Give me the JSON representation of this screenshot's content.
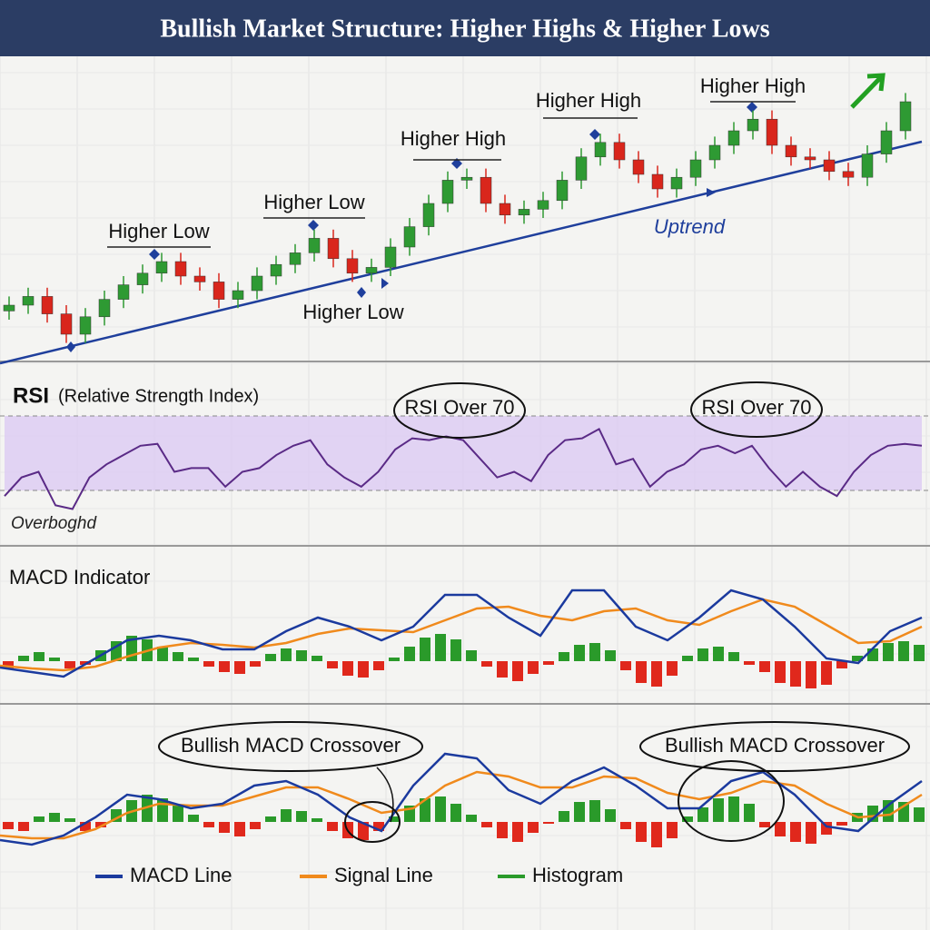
{
  "header": {
    "title": "Bullish Market Structure: Higher Highs & Higher Lows"
  },
  "chart_data": [
    {
      "type": "candlestick",
      "open": [
        18,
        20,
        23,
        17,
        10,
        16,
        22,
        27,
        31,
        35,
        30,
        28,
        22,
        25,
        30,
        34,
        38,
        43,
        36,
        31,
        33,
        40,
        47,
        55,
        63,
        64,
        55,
        51,
        53,
        56,
        63,
        71,
        76,
        70,
        65,
        60,
        64,
        70,
        75,
        80,
        84,
        75,
        71,
        70,
        66,
        64,
        72,
        80
      ],
      "high": [
        23,
        26,
        26,
        20,
        19,
        25,
        30,
        34,
        38,
        38,
        33,
        31,
        28,
        33,
        37,
        41,
        46,
        46,
        39,
        36,
        43,
        50,
        58,
        66,
        67,
        67,
        58,
        56,
        59,
        66,
        74,
        79,
        79,
        73,
        68,
        67,
        73,
        78,
        83,
        87,
        87,
        78,
        74,
        73,
        69,
        75,
        83,
        93
      ],
      "low": [
        15,
        17,
        14,
        7,
        7,
        13,
        19,
        24,
        28,
        27,
        25,
        19,
        19,
        22,
        27,
        31,
        35,
        33,
        28,
        28,
        30,
        37,
        44,
        52,
        60,
        52,
        48,
        48,
        50,
        53,
        60,
        68,
        67,
        62,
        57,
        57,
        61,
        67,
        72,
        77,
        72,
        68,
        67,
        63,
        61,
        61,
        69,
        77
      ],
      "close": [
        20,
        23,
        17,
        10,
        16,
        22,
        27,
        31,
        35,
        30,
        28,
        22,
        25,
        30,
        34,
        38,
        43,
        36,
        31,
        33,
        40,
        47,
        55,
        63,
        64,
        55,
        51,
        53,
        56,
        63,
        71,
        76,
        70,
        65,
        60,
        64,
        70,
        75,
        80,
        84,
        75,
        71,
        70,
        66,
        64,
        72,
        80,
        90
      ],
      "ylim": [
        0,
        105
      ],
      "up_color": "#2e9a33",
      "down_color": "#d9261c",
      "annotations": [
        "Higher Low",
        "Higher Low",
        "Higher High",
        "Higher High",
        "Higher High",
        "Higher Low",
        "Uptrend"
      ]
    },
    {
      "type": "line",
      "title": "RSI",
      "subtitle": "(Relative Strength Index)",
      "values": [
        27,
        37,
        40,
        22,
        20,
        37,
        44,
        49,
        54,
        55,
        40,
        42,
        42,
        32,
        40,
        42,
        49,
        54,
        57,
        44,
        37,
        32,
        40,
        52,
        58,
        57,
        59,
        57,
        47,
        37,
        40,
        35,
        49,
        57,
        58,
        63,
        44,
        47,
        32,
        40,
        44,
        52,
        54,
        50,
        54,
        42,
        32,
        40,
        32,
        27,
        40,
        49,
        54,
        55,
        54
      ],
      "color": "#5a2a86",
      "ylim": [
        10,
        80
      ],
      "band": [
        30,
        70
      ],
      "band_color": "#dccbf2",
      "annotations": [
        "RSI Over 70",
        "RSI Over 70"
      ],
      "zone_label": "Overboghd"
    },
    {
      "type": "macd",
      "title": "MACD Indicator",
      "ylim": [
        -60,
        90
      ],
      "series": [
        {
          "color": "#1b3a9e",
          "values": [
            -7,
            -12,
            -17,
            3,
            23,
            28,
            23,
            13,
            13,
            33,
            48,
            38,
            23,
            38,
            73,
            73,
            48,
            28,
            78,
            78,
            38,
            23,
            48,
            78,
            68,
            38,
            3,
            -2,
            33,
            48
          ]
        },
        {
          "color": "#f08a1c",
          "values": [
            -5,
            -8,
            -10,
            -6,
            5,
            15,
            20,
            18,
            15,
            20,
            30,
            36,
            34,
            32,
            45,
            58,
            60,
            50,
            45,
            55,
            58,
            45,
            40,
            55,
            68,
            60,
            40,
            20,
            22,
            38
          ]
        },
        {
          "color": "#2a9a2a",
          "negative_color": "#e0281c",
          "values": [
            -8,
            6,
            10,
            4,
            -8,
            -4,
            12,
            22,
            28,
            24,
            16,
            10,
            4,
            -6,
            -12,
            -14,
            -6,
            8,
            14,
            12,
            6,
            -8,
            -16,
            -18,
            -10,
            4,
            16,
            26,
            30,
            24,
            12,
            -6,
            -18,
            -22,
            -14,
            -4,
            10,
            18,
            20,
            12,
            -10,
            -24,
            -28,
            -16,
            6,
            14,
            16,
            10,
            -4,
            -12,
            -24,
            -28,
            -30,
            -26,
            -8,
            6,
            14,
            20,
            22,
            18
          ]
        }
      ]
    },
    {
      "type": "macd",
      "ylim": [
        -60,
        90
      ],
      "annotations": [
        "Bullish MACD Crossover",
        "Bullish MACD Crossover"
      ],
      "series": [
        {
          "name": "MACD Line",
          "color": "#1b3a9e",
          "values": [
            -20,
            -25,
            -15,
            5,
            30,
            25,
            15,
            20,
            40,
            45,
            30,
            5,
            -10,
            40,
            75,
            70,
            35,
            20,
            45,
            60,
            40,
            15,
            15,
            45,
            55,
            30,
            -5,
            -10,
            20,
            45
          ]
        },
        {
          "name": "Signal Line",
          "color": "#f08a1c",
          "values": [
            -15,
            -18,
            -18,
            -8,
            10,
            20,
            18,
            18,
            28,
            38,
            38,
            25,
            10,
            15,
            40,
            55,
            50,
            38,
            38,
            50,
            48,
            32,
            25,
            32,
            45,
            40,
            20,
            5,
            8,
            30
          ]
        },
        {
          "name": "Histogram",
          "color": "#2a9a2a",
          "negative_color": "#e0281c",
          "values": [
            -8,
            -10,
            6,
            10,
            4,
            -10,
            -6,
            14,
            24,
            30,
            26,
            18,
            8,
            -6,
            -12,
            -16,
            -8,
            6,
            14,
            12,
            4,
            -10,
            -18,
            -20,
            -10,
            6,
            18,
            26,
            28,
            20,
            8,
            -6,
            -18,
            -22,
            -12,
            -2,
            12,
            22,
            24,
            14,
            -8,
            -22,
            -28,
            -18,
            6,
            16,
            26,
            28,
            20,
            -6,
            -16,
            -22,
            -24,
            -14,
            -4,
            10,
            18,
            24,
            22,
            16
          ]
        }
      ]
    }
  ]
}
